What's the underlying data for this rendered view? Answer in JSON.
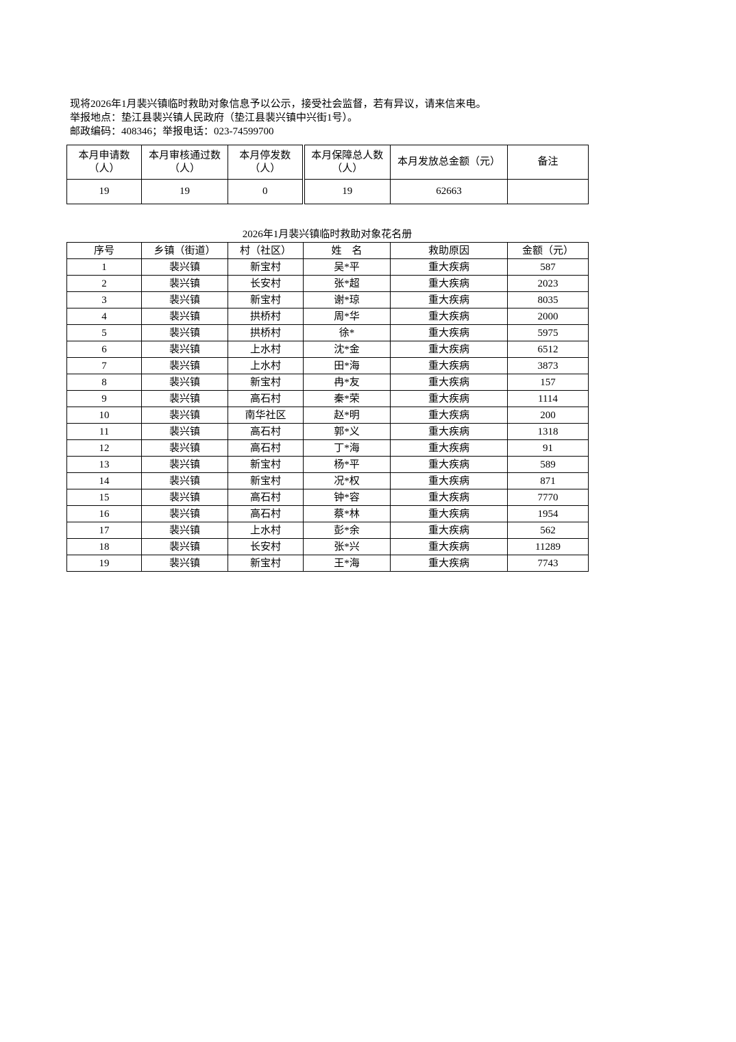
{
  "notice": {
    "line1": "现将2026年1月裴兴镇临时救助对象信息予以公示，接受社会监督，若有异议，请来信来电。",
    "line2": "举报地点：垫江县裴兴镇人民政府（垫江县裴兴镇中兴街1号）。",
    "line3": "邮政编码：408346；举报电话：023-74599700"
  },
  "summary": {
    "headers": [
      {
        "l1": "本月申请数",
        "l2": "（人）"
      },
      {
        "l1": "本月审核通过数",
        "l2": "（人）"
      },
      {
        "l1": "本月停发数",
        "l2": "（人）"
      },
      {
        "l1": "本月保障总人数",
        "l2": "（人）"
      },
      {
        "l1": "本月发放总金额（元）",
        "l2": ""
      },
      {
        "l1": "备注",
        "l2": ""
      }
    ],
    "values": [
      "19",
      "19",
      "0",
      "19",
      "62663",
      ""
    ]
  },
  "roster": {
    "title": "2026年1月裴兴镇临时救助对象花名册",
    "headers": [
      "序号",
      "乡镇（街道）",
      "村（社区）",
      "姓　名",
      "救助原因",
      "金额（元）"
    ],
    "rows": [
      [
        "1",
        "裴兴镇",
        "新宝村",
        "吴*平",
        "重大疾病",
        "587"
      ],
      [
        "2",
        "裴兴镇",
        "长安村",
        "张*超",
        "重大疾病",
        "2023"
      ],
      [
        "3",
        "裴兴镇",
        "新宝村",
        "谢*琼",
        "重大疾病",
        "8035"
      ],
      [
        "4",
        "裴兴镇",
        "拱桥村",
        "周*华",
        "重大疾病",
        "2000"
      ],
      [
        "5",
        "裴兴镇",
        "拱桥村",
        "徐*",
        "重大疾病",
        "5975"
      ],
      [
        "6",
        "裴兴镇",
        "上水村",
        "沈*金",
        "重大疾病",
        "6512"
      ],
      [
        "7",
        "裴兴镇",
        "上水村",
        "田*海",
        "重大疾病",
        "3873"
      ],
      [
        "8",
        "裴兴镇",
        "新宝村",
        "冉*友",
        "重大疾病",
        "157"
      ],
      [
        "9",
        "裴兴镇",
        "高石村",
        "秦*荣",
        "重大疾病",
        "1114"
      ],
      [
        "10",
        "裴兴镇",
        "南华社区",
        "赵*明",
        "重大疾病",
        "200"
      ],
      [
        "11",
        "裴兴镇",
        "高石村",
        "郭*义",
        "重大疾病",
        "1318"
      ],
      [
        "12",
        "裴兴镇",
        "高石村",
        "丁*海",
        "重大疾病",
        "91"
      ],
      [
        "13",
        "裴兴镇",
        "新宝村",
        "杨*平",
        "重大疾病",
        "589"
      ],
      [
        "14",
        "裴兴镇",
        "新宝村",
        "况*权",
        "重大疾病",
        "871"
      ],
      [
        "15",
        "裴兴镇",
        "高石村",
        "钟*容",
        "重大疾病",
        "7770"
      ],
      [
        "16",
        "裴兴镇",
        "高石村",
        "蔡*林",
        "重大疾病",
        "1954"
      ],
      [
        "17",
        "裴兴镇",
        "上水村",
        "彭*余",
        "重大疾病",
        "562"
      ],
      [
        "18",
        "裴兴镇",
        "长安村",
        "张*兴",
        "重大疾病",
        "11289"
      ],
      [
        "19",
        "裴兴镇",
        "新宝村",
        "王*海",
        "重大疾病",
        "7743"
      ]
    ]
  }
}
